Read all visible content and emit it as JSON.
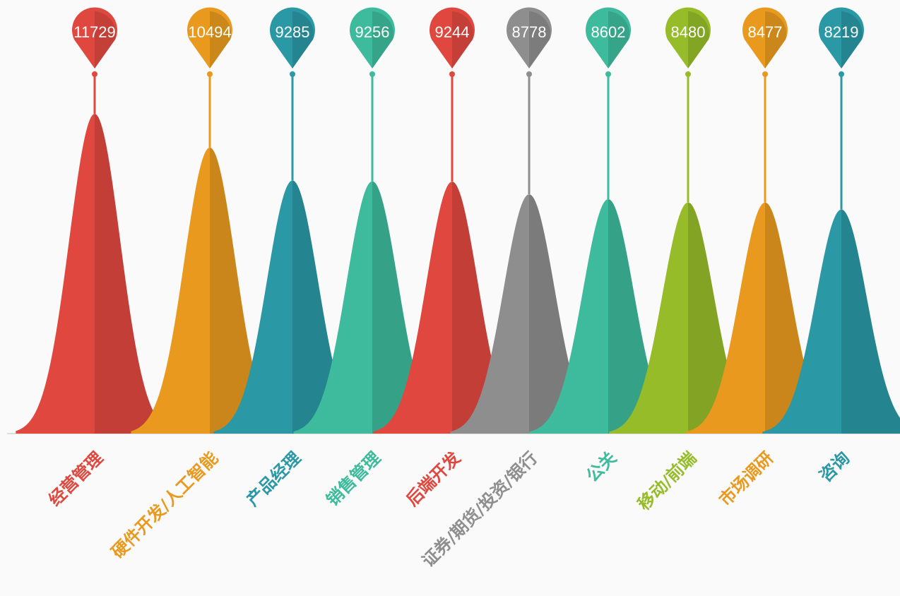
{
  "chart_data": {
    "type": "bell",
    "categories": [
      "经营管理",
      "硬件开发/人工智能",
      "产品经理",
      "销售管理",
      "后端开发",
      "证券/期货/投资/银行",
      "公关",
      "移动/前端",
      "市场调研",
      "咨询"
    ],
    "values": [
      11729,
      10494,
      9285,
      9256,
      9244,
      8778,
      8602,
      8480,
      8477,
      8219
    ],
    "colors": [
      "#e0483f",
      "#e99a1e",
      "#2a98a5",
      "#3dbb9c",
      "#e0483f",
      "#8e8e8e",
      "#3dbb9c",
      "#96bc29",
      "#e99a1e",
      "#2a98a5"
    ]
  }
}
